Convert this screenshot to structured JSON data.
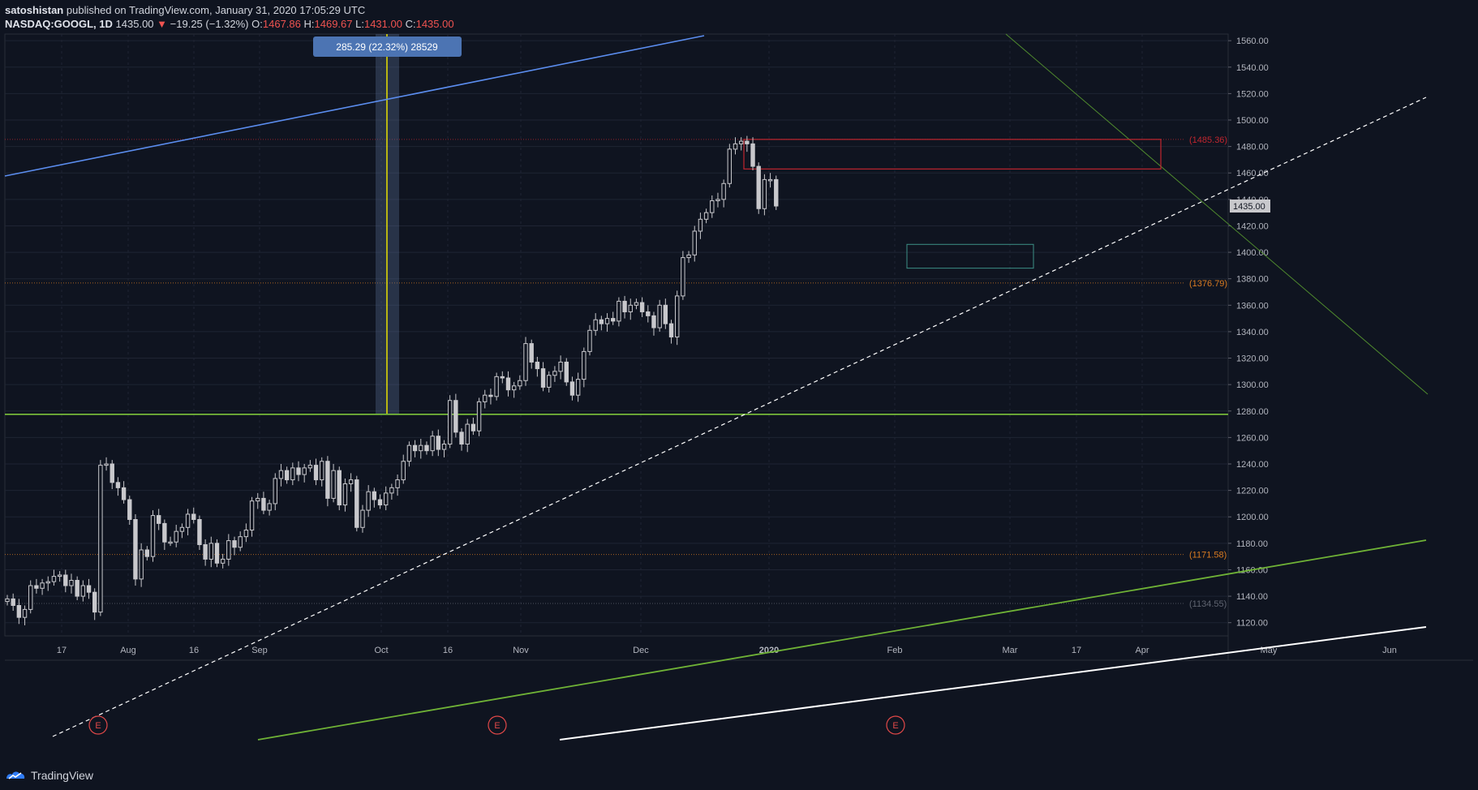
{
  "header": {
    "author": "satoshistan",
    "published": "published on TradingView.com, January 31, 2020 17:05:29 UTC",
    "symbol": "NASDAQ:GOOGL, 1D",
    "last": "1435.00",
    "change": "−19.25 (−1.32%)",
    "o_label": "O:",
    "o_value": "1467.86",
    "h_label": "H:",
    "h_value": "1469.67",
    "l_label": "L:",
    "l_value": "1431.00",
    "c_label": "C:",
    "c_value": "1435.00"
  },
  "footer": {
    "brand": "TradingView"
  },
  "colors": {
    "background": "#0f1420",
    "grid": "#1f2433",
    "candle": "#c8c8cc",
    "accent_blue": "#5b8def",
    "support_green": "#7cc43a",
    "earnings_red": "#e04848"
  },
  "chart_data": {
    "type": "candlestick",
    "symbol": "NASDAQ:GOOGL",
    "interval": "1D",
    "ylim": [
      1110,
      1565
    ],
    "y_ticks": [
      1120,
      1140,
      1160,
      1180,
      1200,
      1220,
      1240,
      1260,
      1280,
      1300,
      1320,
      1340,
      1360,
      1380,
      1400,
      1420,
      1440,
      1460,
      1480,
      1500,
      1520,
      1540,
      1560
    ],
    "x_ticks": [
      "17",
      "Aug",
      "16",
      "Sep",
      "Oct",
      "16",
      "Nov",
      "Dec",
      "2020",
      "Feb",
      "Mar",
      "17",
      "Apr",
      "May",
      "Jun"
    ],
    "last_price_label": "1435.00",
    "measure_label": "285.29 (22.32%) 28529",
    "price_levels": [
      {
        "label": "(1485.36)",
        "value": 1485.36,
        "color": "#c0262f"
      },
      {
        "label": "(1376.79)",
        "value": 1376.79,
        "color": "#d97b21"
      },
      {
        "label": "(1171.58)",
        "value": 1171.58,
        "color": "#d97b21"
      },
      {
        "label": "(1134.55)",
        "value": 1134.55,
        "color": "#5f6470"
      }
    ],
    "support_level": 1277.5,
    "earnings_markers": [
      "E",
      "E",
      "E"
    ],
    "series": [
      {
        "values": [
          1138,
          1133,
          1124,
          1130,
          1148,
          1146,
          1150,
          1151,
          1155,
          1156,
          1148,
          1152,
          1140,
          1148,
          1143,
          1128,
          1239,
          1240,
          1226,
          1222,
          1213,
          1198,
          1153,
          1175,
          1170,
          1201,
          1195,
          1181,
          1181,
          1189,
          1192,
          1202,
          1198,
          1179,
          1168,
          1180,
          1165,
          1168,
          1182,
          1177,
          1185,
          1190,
          1212,
          1214,
          1205,
          1210,
          1229,
          1235,
          1228,
          1237,
          1232,
          1237,
          1239,
          1228,
          1242,
          1214,
          1235,
          1209,
          1225,
          1228,
          1192,
          1205,
          1219,
          1213,
          1209,
          1218,
          1222,
          1228,
          1242,
          1254,
          1250,
          1254,
          1250,
          1261,
          1251,
          1255,
          1288,
          1264,
          1255,
          1270,
          1265,
          1287,
          1292,
          1291,
          1306,
          1305,
          1296,
          1299,
          1303,
          1331,
          1317,
          1312,
          1298,
          1307,
          1310,
          1317,
          1302,
          1292,
          1304,
          1325,
          1341,
          1349,
          1346,
          1350,
          1348,
          1363,
          1355,
          1360,
          1362,
          1355,
          1352,
          1343,
          1360,
          1346,
          1336,
          1367,
          1396,
          1398,
          1416,
          1425,
          1430,
          1439,
          1440,
          1452,
          1478,
          1482,
          1484,
          1482,
          1465,
          1433,
          1455,
          1455,
          1435
        ]
      }
    ]
  }
}
